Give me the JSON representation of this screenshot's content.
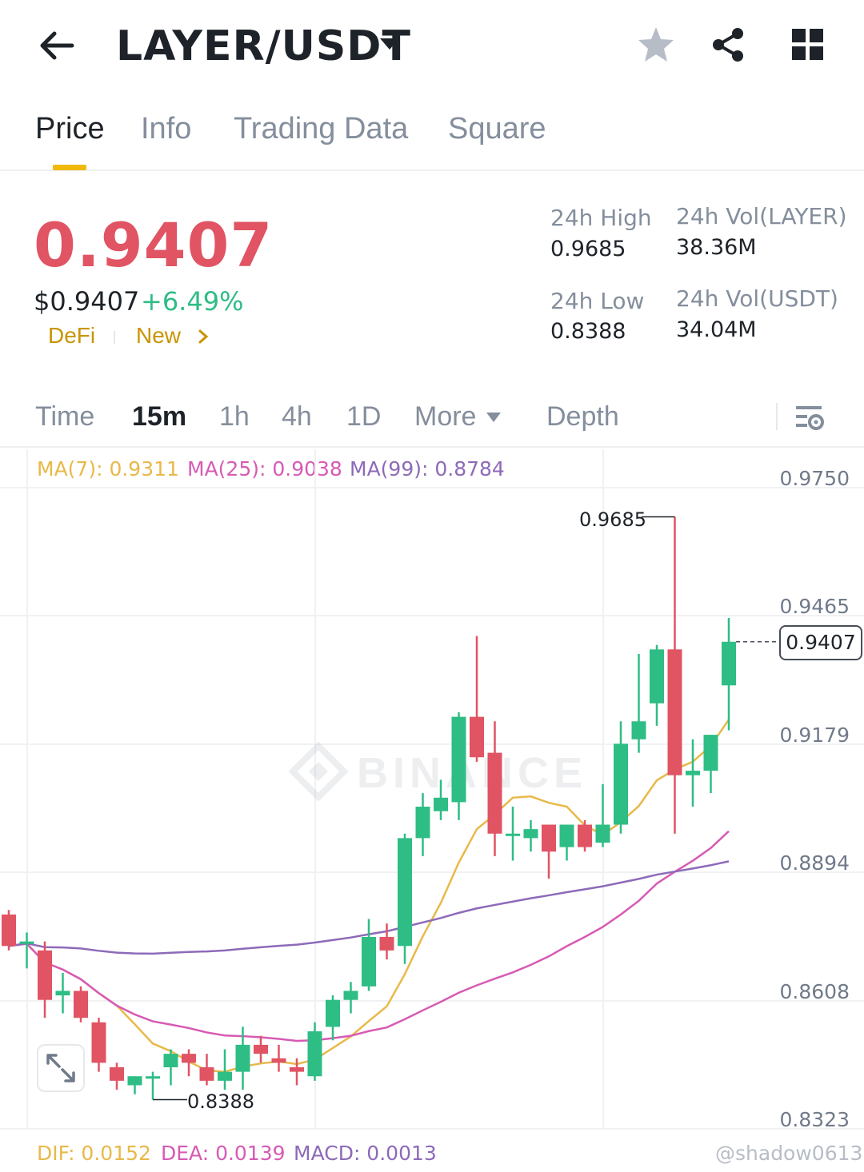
{
  "header": {
    "pair": "LAYER/USDT",
    "icons": [
      "back-arrow-icon",
      "caret-down-icon",
      "star-icon",
      "share-icon",
      "grid-icon"
    ]
  },
  "tabs": [
    {
      "label": "Price",
      "active": true
    },
    {
      "label": "Info",
      "active": false
    },
    {
      "label": "Trading Data",
      "active": false
    },
    {
      "label": "Square",
      "active": false
    }
  ],
  "ticker": {
    "last_price": "0.9407",
    "usd_price": "$0.9407",
    "change": "+6.49%",
    "tags": [
      "DeFi",
      "New"
    ],
    "stats": {
      "high_label": "24h High",
      "high_value": "0.9685",
      "low_label": "24h Low",
      "low_value": "0.8388",
      "vol_base_label": "24h Vol(LAYER)",
      "vol_base_value": "38.36M",
      "vol_quote_label": "24h Vol(USDT)",
      "vol_quote_value": "34.04M"
    }
  },
  "intervals": {
    "items": [
      "Time",
      "15m",
      "1h",
      "4h",
      "1D"
    ],
    "active": "15m",
    "more_label": "More",
    "depth_label": "Depth"
  },
  "moving_averages": {
    "ma7": "MA(7): 0.9311",
    "ma25": "MA(25): 0.9038",
    "ma99": "MA(99): 0.8784"
  },
  "price_axis": [
    "0.9750",
    "0.9465",
    "0.9179",
    "0.8894",
    "0.8608",
    "0.8323"
  ],
  "chart_labels": {
    "high_marker": "0.9685",
    "low_marker": "0.8388",
    "last_price_marker": "0.9407"
  },
  "macd": {
    "dif": "DIF: 0.0152",
    "dea": "DEA: 0.0139",
    "macd": "MACD: 0.0013"
  },
  "watermark_user": "@shadow0613",
  "colors": {
    "up": "#2ebd85",
    "down": "#e05463",
    "accent": "#f0b90b",
    "ma7": "#e8b949",
    "ma25": "#d75ab4",
    "ma99": "#8d6ab8"
  },
  "chart_data": {
    "type": "candlestick",
    "y_range": [
      0.8323,
      0.975
    ],
    "y_ticks": [
      0.975,
      0.9465,
      0.9179,
      0.8894,
      0.8608,
      0.8323
    ],
    "candles": [
      {
        "o": 0.88,
        "h": 0.881,
        "l": 0.872,
        "c": 0.873
      },
      {
        "o": 0.874,
        "h": 0.876,
        "l": 0.868,
        "c": 0.874
      },
      {
        "o": 0.872,
        "h": 0.874,
        "l": 0.857,
        "c": 0.861
      },
      {
        "o": 0.862,
        "h": 0.867,
        "l": 0.858,
        "c": 0.863
      },
      {
        "o": 0.863,
        "h": 0.864,
        "l": 0.856,
        "c": 0.857
      },
      {
        "o": 0.856,
        "h": 0.857,
        "l": 0.845,
        "c": 0.847
      },
      {
        "o": 0.846,
        "h": 0.847,
        "l": 0.841,
        "c": 0.843
      },
      {
        "o": 0.842,
        "h": 0.844,
        "l": 0.84,
        "c": 0.844
      },
      {
        "o": 0.844,
        "h": 0.845,
        "l": 0.8388,
        "c": 0.844
      },
      {
        "o": 0.846,
        "h": 0.85,
        "l": 0.842,
        "c": 0.849
      },
      {
        "o": 0.849,
        "h": 0.85,
        "l": 0.844,
        "c": 0.847
      },
      {
        "o": 0.846,
        "h": 0.849,
        "l": 0.842,
        "c": 0.843
      },
      {
        "o": 0.843,
        "h": 0.85,
        "l": 0.841,
        "c": 0.845
      },
      {
        "o": 0.845,
        "h": 0.855,
        "l": 0.841,
        "c": 0.851
      },
      {
        "o": 0.851,
        "h": 0.853,
        "l": 0.847,
        "c": 0.849
      },
      {
        "o": 0.848,
        "h": 0.851,
        "l": 0.845,
        "c": 0.847
      },
      {
        "o": 0.846,
        "h": 0.848,
        "l": 0.842,
        "c": 0.845
      },
      {
        "o": 0.844,
        "h": 0.856,
        "l": 0.843,
        "c": 0.854
      },
      {
        "o": 0.855,
        "h": 0.862,
        "l": 0.852,
        "c": 0.861
      },
      {
        "o": 0.861,
        "h": 0.865,
        "l": 0.858,
        "c": 0.863
      },
      {
        "o": 0.864,
        "h": 0.879,
        "l": 0.863,
        "c": 0.875
      },
      {
        "o": 0.875,
        "h": 0.878,
        "l": 0.87,
        "c": 0.872
      },
      {
        "o": 0.873,
        "h": 0.898,
        "l": 0.869,
        "c": 0.897
      },
      {
        "o": 0.897,
        "h": 0.907,
        "l": 0.893,
        "c": 0.904
      },
      {
        "o": 0.903,
        "h": 0.91,
        "l": 0.901,
        "c": 0.906
      },
      {
        "o": 0.905,
        "h": 0.925,
        "l": 0.901,
        "c": 0.924
      },
      {
        "o": 0.924,
        "h": 0.942,
        "l": 0.914,
        "c": 0.915
      },
      {
        "o": 0.916,
        "h": 0.923,
        "l": 0.893,
        "c": 0.898
      },
      {
        "o": 0.898,
        "h": 0.904,
        "l": 0.892,
        "c": 0.898
      },
      {
        "o": 0.897,
        "h": 0.901,
        "l": 0.894,
        "c": 0.899
      },
      {
        "o": 0.9,
        "h": 0.9,
        "l": 0.888,
        "c": 0.894
      },
      {
        "o": 0.895,
        "h": 0.9,
        "l": 0.892,
        "c": 0.9
      },
      {
        "o": 0.9,
        "h": 0.901,
        "l": 0.894,
        "c": 0.895
      },
      {
        "o": 0.896,
        "h": 0.909,
        "l": 0.895,
        "c": 0.9
      },
      {
        "o": 0.9,
        "h": 0.923,
        "l": 0.898,
        "c": 0.918
      },
      {
        "o": 0.919,
        "h": 0.938,
        "l": 0.916,
        "c": 0.923
      },
      {
        "o": 0.927,
        "h": 0.94,
        "l": 0.922,
        "c": 0.939
      },
      {
        "o": 0.939,
        "h": 0.9685,
        "l": 0.898,
        "c": 0.911
      },
      {
        "o": 0.911,
        "h": 0.919,
        "l": 0.904,
        "c": 0.912
      },
      {
        "o": 0.912,
        "h": 0.92,
        "l": 0.907,
        "c": 0.92
      },
      {
        "o": 0.931,
        "h": 0.946,
        "l": 0.921,
        "c": 0.9407
      }
    ]
  }
}
